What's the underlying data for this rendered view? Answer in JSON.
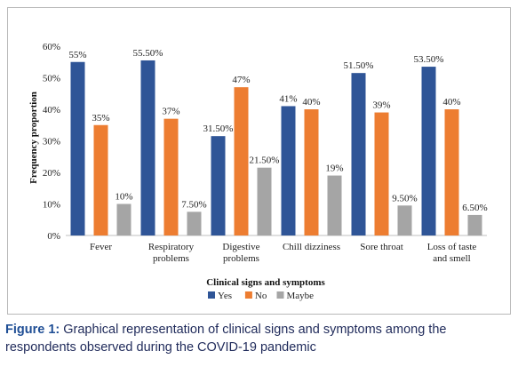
{
  "chart_data": {
    "type": "bar",
    "categories": [
      "Fever",
      "Respiratory problems",
      "Digestive problems",
      "Chill dizziness",
      "Sore throat",
      "Loss of taste and smell"
    ],
    "category_lines": [
      [
        "Fever"
      ],
      [
        "Respiratory",
        "problems"
      ],
      [
        "Digestive",
        "problems"
      ],
      [
        "Chill dizziness"
      ],
      [
        "Sore throat"
      ],
      [
        "Loss of taste",
        "and smell"
      ]
    ],
    "series": [
      {
        "name": "Yes",
        "color": "#2f5597",
        "values": [
          55,
          55.5,
          31.5,
          41,
          51.5,
          53.5
        ],
        "labels": [
          "55%",
          "55.50%",
          "31.50%",
          "41%",
          "51.50%",
          "53.50%"
        ]
      },
      {
        "name": "No",
        "color": "#ed7d31",
        "values": [
          35,
          37,
          47,
          40,
          39,
          40
        ],
        "labels": [
          "35%",
          "37%",
          "47%",
          "40%",
          "39%",
          "40%"
        ]
      },
      {
        "name": "Maybe",
        "color": "#a5a5a5",
        "values": [
          10,
          7.5,
          21.5,
          19,
          9.5,
          6.5
        ],
        "labels": [
          "10%",
          "7.50%",
          "21.50%",
          "19%",
          "9.50%",
          "6.50%"
        ]
      }
    ],
    "yticks": [
      "0%",
      "10%",
      "20%",
      "30%",
      "40%",
      "50%",
      "60%"
    ],
    "ylim": [
      0,
      60
    ],
    "xlabel": "Clinical signs and symptoms",
    "ylabel": "Frequency proportion",
    "grid": false,
    "legend_position": "bottom-center"
  },
  "caption": {
    "label": "Figure 1:",
    "text": " Graphical representation of clinical signs and symptoms among the respondents observed during the COVID-19   pandemic"
  }
}
